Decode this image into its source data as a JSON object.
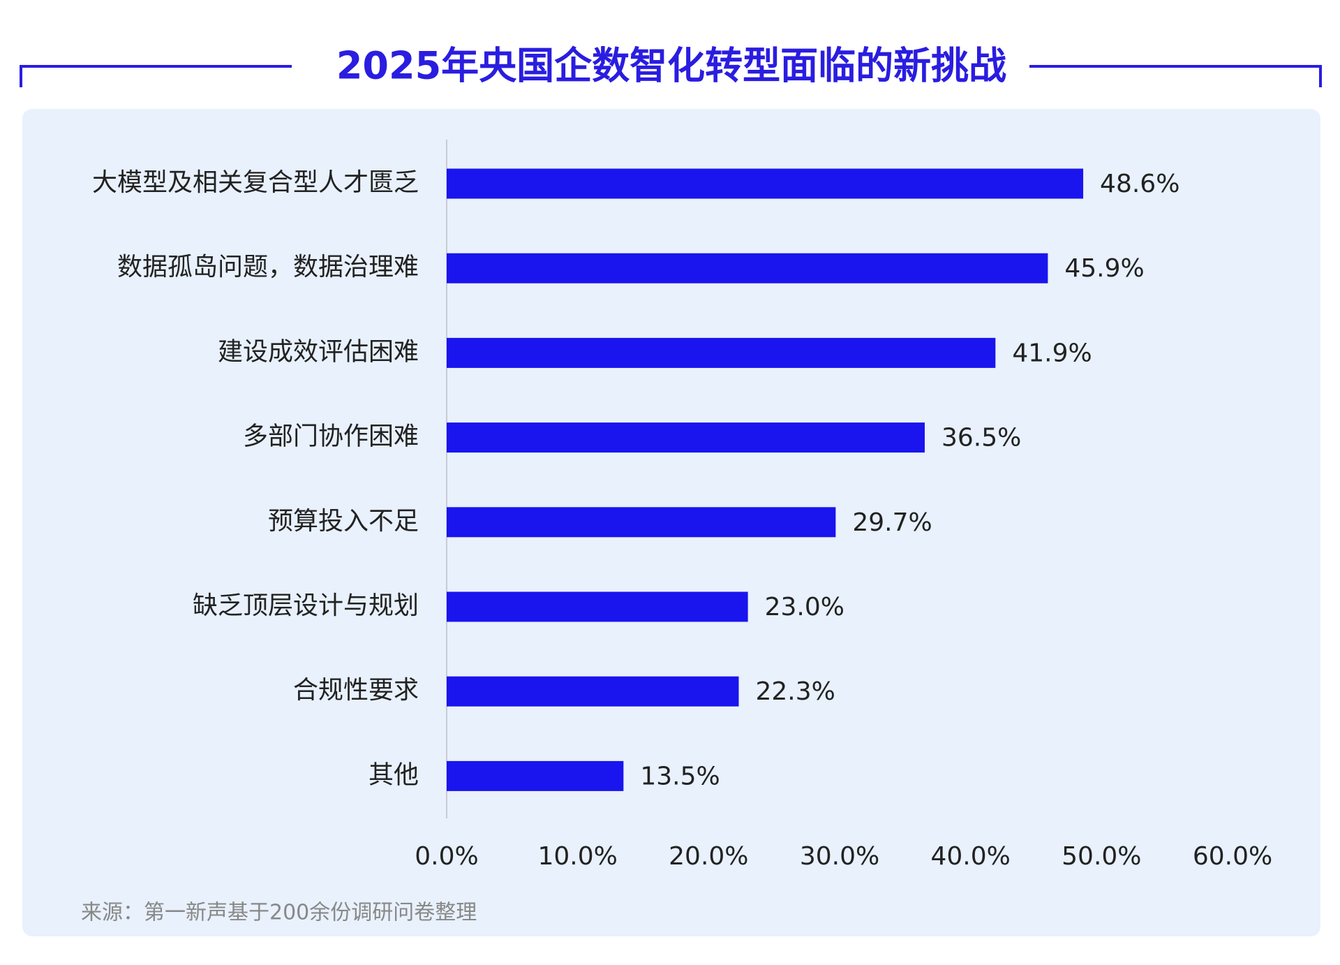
{
  "chart_data": {
    "type": "hbar",
    "title": "2025年央国企数智化转型面临的新挑战",
    "categories": [
      "大模型及相关复合型人才匮乏",
      "数据孤岛问题，数据治理难",
      "建设成效评估困难",
      "多部门协作困难",
      "预算投入不足",
      "缺乏顶层设计与规划",
      "合规性要求",
      "其他"
    ],
    "values": [
      48.6,
      45.9,
      41.9,
      36.5,
      29.7,
      23.0,
      22.3,
      13.5
    ],
    "value_labels": [
      "48.6%",
      "45.9%",
      "41.9%",
      "36.5%",
      "29.7%",
      "23.0%",
      "22.3%",
      "13.5%"
    ],
    "color": "#1a14ee",
    "xlim": [
      0,
      60
    ],
    "xticks": [
      {
        "value": 0,
        "label": "0.0%"
      },
      {
        "value": 10,
        "label": "10.0%"
      },
      {
        "value": 20,
        "label": "20.0%"
      },
      {
        "value": 30,
        "label": "30.0%"
      },
      {
        "value": 40,
        "label": "40.0%"
      },
      {
        "value": 50,
        "label": "50.0%"
      },
      {
        "value": 60,
        "label": "60.0%"
      }
    ],
    "source": "来源：第一新声基于200余份调研问卷整理"
  }
}
